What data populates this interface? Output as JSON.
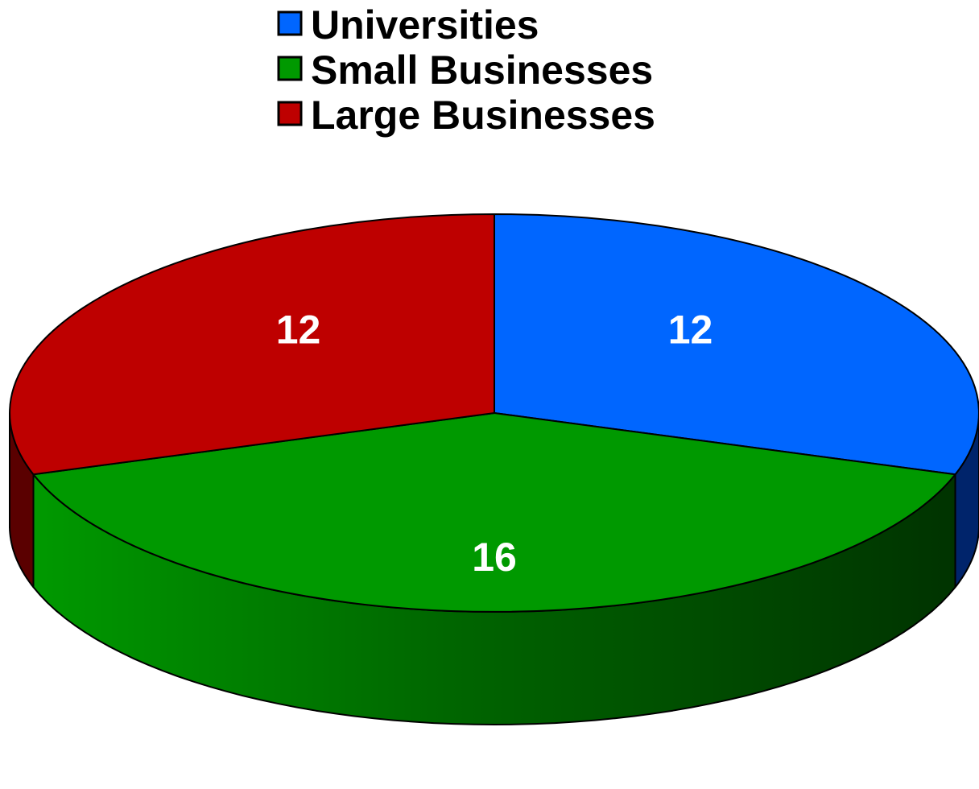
{
  "chart_data": {
    "type": "pie",
    "three_d": true,
    "legend_position": "top",
    "slices": [
      {
        "label": "Universities",
        "value": 12,
        "color": "#0066FF",
        "side_color": "#00246B"
      },
      {
        "label": "Small Businesses",
        "value": 16,
        "color": "#009900",
        "side_color": "#003D00"
      },
      {
        "label": "Large Businesses",
        "value": 12,
        "color": "#BE0000",
        "side_color": "#5A0000"
      }
    ]
  }
}
